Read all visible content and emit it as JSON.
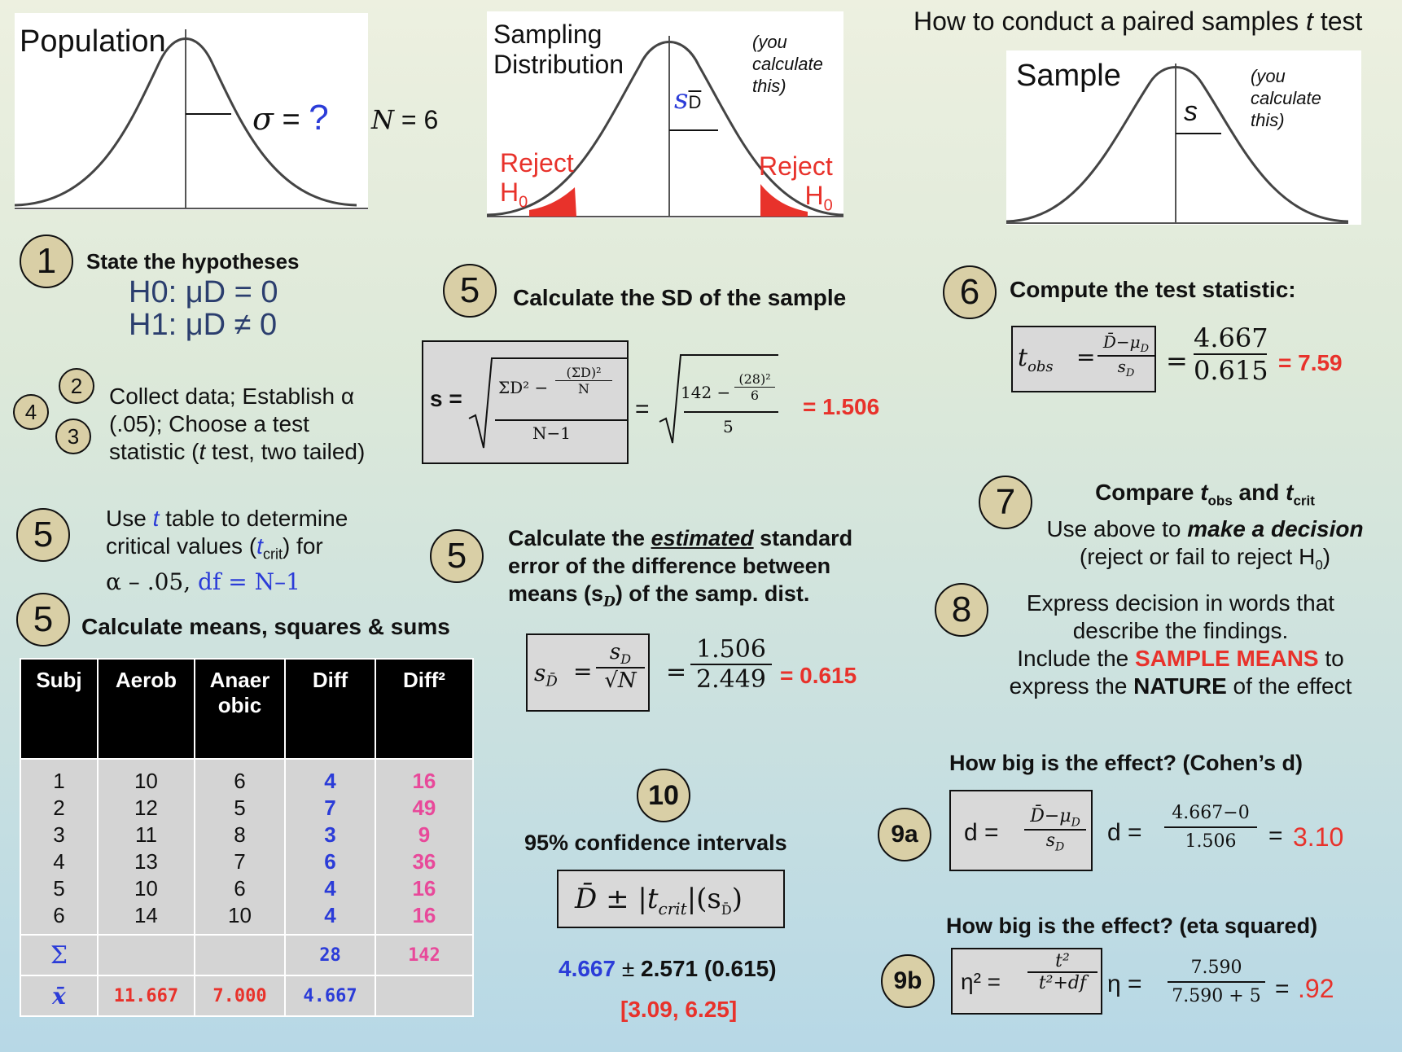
{
  "title": {
    "prefix": "How to conduct a paired samples ",
    "t": "t",
    "suffix": " test"
  },
  "population": {
    "label": "Population",
    "sigma": "σ",
    "eq": " = ",
    "q": "?"
  },
  "n_label": {
    "n": "N",
    "rest": " = 6"
  },
  "sampling": {
    "label_line1": "Sampling",
    "label_line2": "Distribution",
    "note_line1": "(you",
    "note_line2": "calculate",
    "note_line3": "this)",
    "s": "s",
    "sub": "D",
    "reject": "Reject",
    "h0": "H",
    "h0sub": "0"
  },
  "sample": {
    "label": "Sample",
    "note_line1": "(you",
    "note_line2": "calculate",
    "note_line3": "this)",
    "s": "s"
  },
  "step1": {
    "num": "1",
    "heading": "State the hypotheses",
    "h0": "H0: μD = 0",
    "h1": "H1: μD ≠ 0"
  },
  "step234": {
    "n2": "2",
    "n3": "3",
    "n4": "4",
    "line1": "Collect data; Establish α",
    "line2": "(.05); Choose a test",
    "line3a": "statistic (",
    "line3t": "t",
    "line3b": " test, two tailed)"
  },
  "step5_table": {
    "num": "5",
    "line1a": "Use ",
    "line1t": "t",
    "line1b": " table to determine",
    "line2a": "critical values (",
    "line2t": "t",
    "line2sub": "crit",
    "line2b": ") for",
    "line3a": "α – .05, ",
    "line3b": "df = N–1"
  },
  "step5_means": {
    "num": "5",
    "heading": "Calculate means, squares & sums"
  },
  "table": {
    "headers": [
      "Subj",
      "Aerob",
      "Anaer obic",
      "Diff",
      "Diff²"
    ],
    "subj": [
      "1",
      "2",
      "3",
      "4",
      "5",
      "6"
    ],
    "aerob": [
      "10",
      "12",
      "11",
      "13",
      "10",
      "14"
    ],
    "anaerobic": [
      "6",
      "5",
      "8",
      "7",
      "6",
      "10"
    ],
    "diff": [
      "4",
      "7",
      "3",
      "6",
      "4",
      "4"
    ],
    "diff2": [
      "16",
      "49",
      "9",
      "36",
      "16",
      "16"
    ],
    "sum_symbol": "Σ",
    "sum_diff": "28",
    "sum_diff2": "142",
    "mean_symbol": "x̄",
    "mean_aerob": "11.667",
    "mean_anaerobic": "7.000",
    "mean_diff": "4.667"
  },
  "step5_sd": {
    "num": "5",
    "heading": "Calculate the SD of the sample",
    "s_eq": "s =",
    "num_expr": "ΣD² − ",
    "inner_num": "(ΣD)²",
    "inner_den": "N",
    "den": "N−1",
    "eq": "=",
    "num_val": "142 − ",
    "inner_num_val": "(28)²",
    "inner_den_val": "6",
    "den_val": "5",
    "result": "= 1.506"
  },
  "step5_se": {
    "num": "5",
    "line1a": "Calculate the ",
    "line1em": "estimated",
    "line1b": " standard",
    "line2": "error of the difference between",
    "line3a": "means (s",
    "line3sub": "D",
    "line3b": ") of the samp. dist.",
    "lhs": "s",
    "lhs_sub": "D̄",
    "frac_num": "s",
    "frac_num_sub": "D",
    "frac_den": "√N",
    "eq": "=",
    "val_num": "1.506",
    "val_den": "2.449",
    "result": "= 0.615"
  },
  "step6": {
    "num": "6",
    "heading": "Compute the test statistic:",
    "lhs": "t",
    "lhs_sub": "obs",
    "eq": "=",
    "frac_num": "D̄−μ",
    "frac_num_sub": "D",
    "frac_den": "s",
    "frac_den_sub": "D",
    "val_num": "4.667",
    "val_den": "0.615",
    "result": "= 7.59"
  },
  "step7": {
    "num": "7",
    "line1a": "Compare ",
    "line1t1": "t",
    "line1s1": "obs",
    "line1b": " and ",
    "line1t2": "t",
    "line1s2": "crit",
    "line2a": "Use above to ",
    "line2em": "make a decision",
    "line3": "(reject or fail to reject H",
    "line3sub": "0",
    "line3end": ")"
  },
  "step8": {
    "num": "8",
    "line1": "Express decision in words that",
    "line2": "describe the findings.",
    "line3a": "Include the ",
    "line3em": "SAMPLE MEANS",
    "line3b": " to",
    "line4a": "express the ",
    "line4em": "NATURE",
    "line4b": " of the effect"
  },
  "step9a": {
    "num": "9a",
    "heading": "How big is the effect? (Cohen’s d)",
    "lhs": "d =",
    "frac_num": "D̄−μ",
    "frac_num_sub": "D",
    "frac_den": "s",
    "frac_den_sub": "D",
    "lhs2": "d =",
    "val_num": "4.667−0",
    "val_den": "1.506",
    "eq": "=",
    "result": "3.10"
  },
  "step9b": {
    "num": "9b",
    "heading": "How big is the effect? (eta squared)",
    "lhs": "η² =",
    "frac_num": "t²",
    "frac_den": "t²+df",
    "lhs2": "η =",
    "val_num": "7.590",
    "val_den": "7.590 + 5",
    "eq": "=",
    "result": ".92"
  },
  "step10": {
    "num": "10",
    "heading": "95% confidence intervals",
    "formula_d": "D̄",
    "formula_pm": " ± ",
    "formula_t": "|t",
    "formula_sub": "crit",
    "formula_end": "|(s",
    "formula_sub2": "D̄",
    "formula_close": ")",
    "val_mean": "4.667",
    "val_pm": " ± ",
    "val_rest": "2.571 (0.615)",
    "interval": "[3.09, 6.25]"
  }
}
